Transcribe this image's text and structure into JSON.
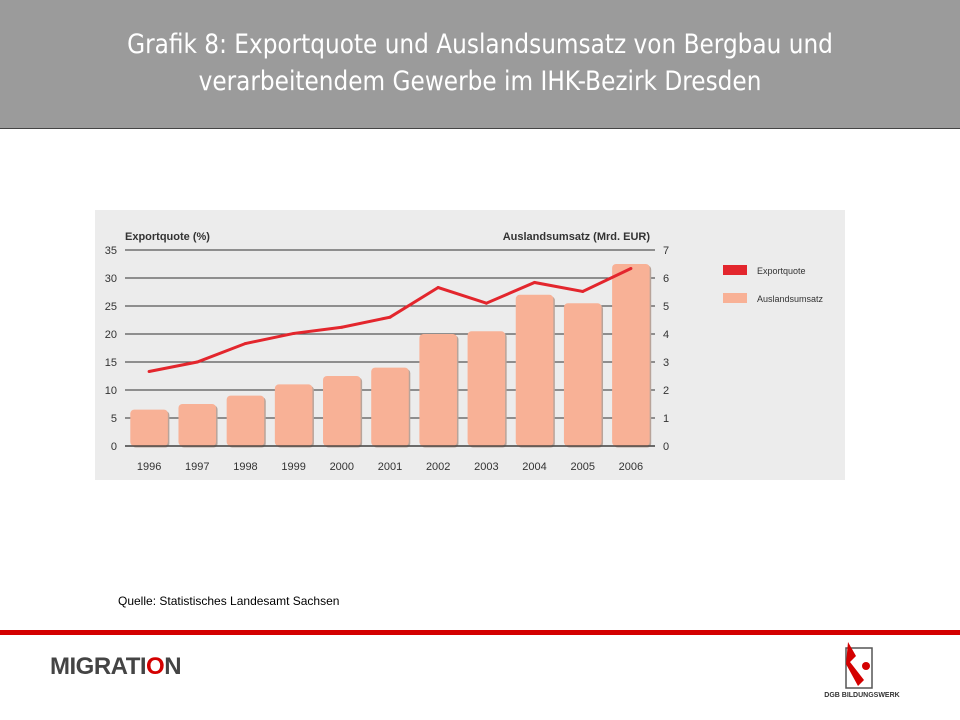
{
  "header": {
    "title": "Grafik 8: Exportquote und Auslandsumsatz von Bergbau und verarbeitendem Gewerbe im IHK-Bezirk Dresden"
  },
  "source": "Quelle: Statistisches Landesamt Sachsen",
  "footer": {
    "left_logo": "MIGRATION",
    "right_logo": "DGB BILDUNGSWERK"
  },
  "colors": {
    "line": "#e3262d",
    "bar": "#f8b196",
    "header": "#9b9b9b",
    "accent": "#d40000"
  },
  "chart_data": {
    "type": "bar+line",
    "categories": [
      "1996",
      "1997",
      "1998",
      "1999",
      "2000",
      "2001",
      "2002",
      "2003",
      "2004",
      "2005",
      "2006"
    ],
    "ylabel_left": "Exportquote (%)",
    "ylabel_right": "Auslandsumsatz (Mrd. EUR)",
    "ylim_left": [
      0,
      35
    ],
    "yticks_left": [
      "0",
      "5",
      "10",
      "15",
      "20",
      "25",
      "30",
      "35"
    ],
    "ylim_right": [
      0,
      7
    ],
    "yticks_right": [
      "0",
      "1",
      "2",
      "3",
      "4",
      "5",
      "6",
      "7"
    ],
    "grid": true,
    "legend_placement": "right",
    "series": [
      {
        "name": "Exportquote",
        "type": "line",
        "axis": "left",
        "values": [
          13.3,
          15.0,
          18.3,
          20.1,
          21.2,
          23.0,
          28.3,
          25.5,
          29.2,
          27.6,
          31.7
        ]
      },
      {
        "name": "Auslandsumsatz",
        "type": "bar",
        "axis": "right",
        "values": [
          1.3,
          1.5,
          1.8,
          2.2,
          2.5,
          2.8,
          4.0,
          4.1,
          5.4,
          5.1,
          6.5
        ]
      }
    ]
  }
}
